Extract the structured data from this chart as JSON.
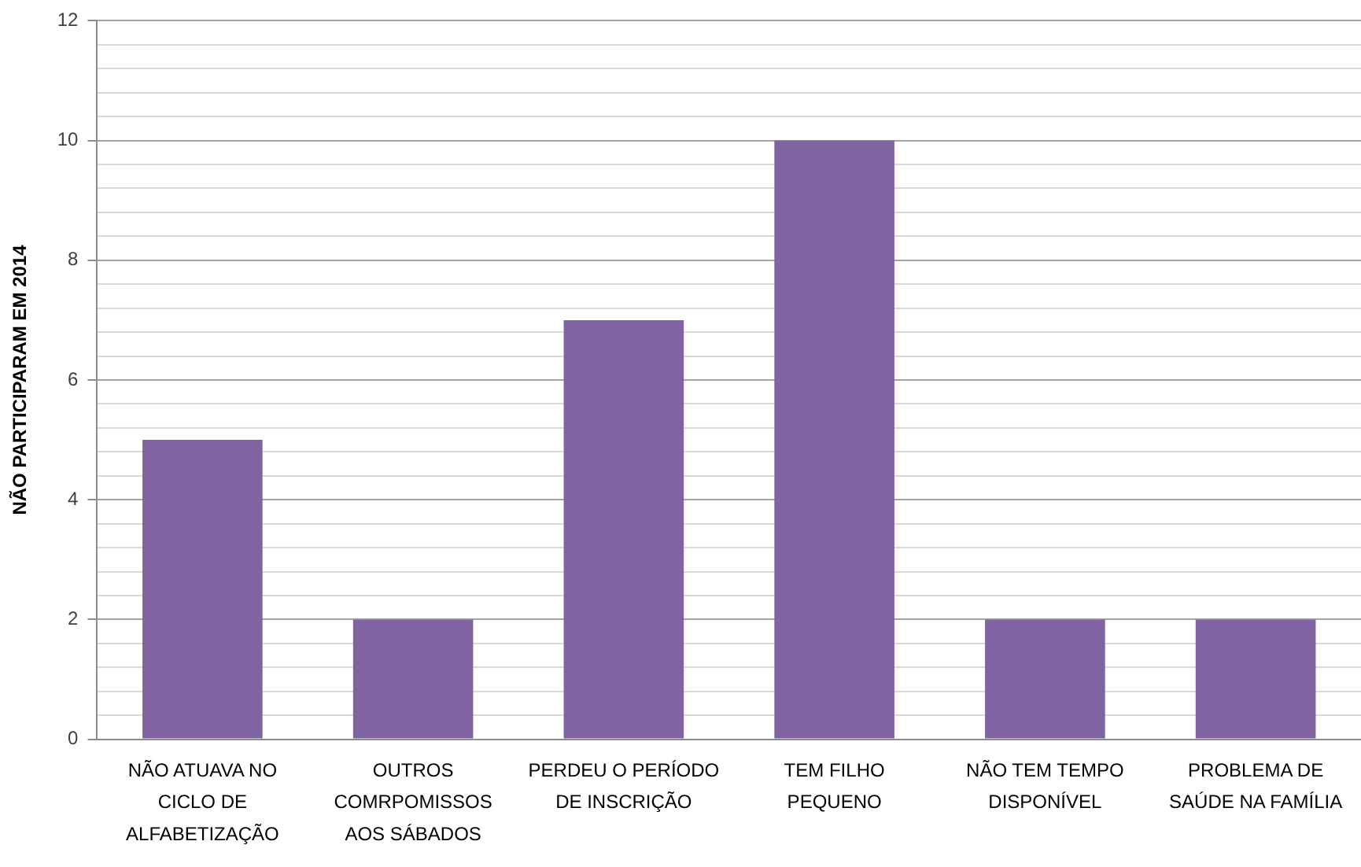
{
  "chart_data": {
    "type": "bar",
    "ylabel": "NÃO PARTICIPARAM EM 2014",
    "categories": [
      "NÃO ATUAVA NO CICLO DE ALFABETIZAÇÃO",
      "OUTROS COMRPOMISSOS AOS SÁBADOS",
      "PERDEU O PERÍODO DE INSCRIÇÃO",
      "TEM FILHO PEQUENO",
      "NÃO TEM TEMPO DISPONÍVEL",
      "PROBLEMA DE SAÚDE NA FAMÍLIA"
    ],
    "values": [
      5,
      2,
      7,
      10,
      2,
      2
    ],
    "color": "#8064a2",
    "ylim": [
      0,
      12
    ],
    "yticks": [
      0,
      {
        "value": 0.4,
        "label": null
      },
      {
        "value": 0.8,
        "label": null
      },
      {
        "value": 1.2,
        "label": null
      },
      {
        "value": 1.6,
        "label": null
      },
      2,
      {
        "value": 2.4,
        "label": null
      },
      {
        "value": 2.8,
        "label": null
      },
      {
        "value": 3.2,
        "label": null
      },
      {
        "value": 3.6,
        "label": null
      },
      4,
      {
        "value": 4.4,
        "label": null
      },
      {
        "value": 4.8,
        "label": null
      },
      {
        "value": 5.2,
        "label": null
      },
      {
        "value": 5.6,
        "label": null
      },
      6,
      {
        "value": 6.4,
        "label": null
      },
      {
        "value": 6.8,
        "label": null
      },
      {
        "value": 7.2,
        "label": null
      },
      {
        "value": 7.6,
        "label": null
      },
      8,
      {
        "value": 8.4,
        "label": null
      },
      {
        "value": 8.8,
        "label": null
      },
      {
        "value": 9.2,
        "label": null
      },
      {
        "value": 9.6,
        "label": null
      },
      10,
      {
        "value": 10.4,
        "label": null
      },
      {
        "value": 10.8,
        "label": null
      },
      {
        "value": 11.2,
        "label": null
      },
      {
        "value": 11.6,
        "label": null
      },
      12
    ],
    "grid": "y"
  }
}
